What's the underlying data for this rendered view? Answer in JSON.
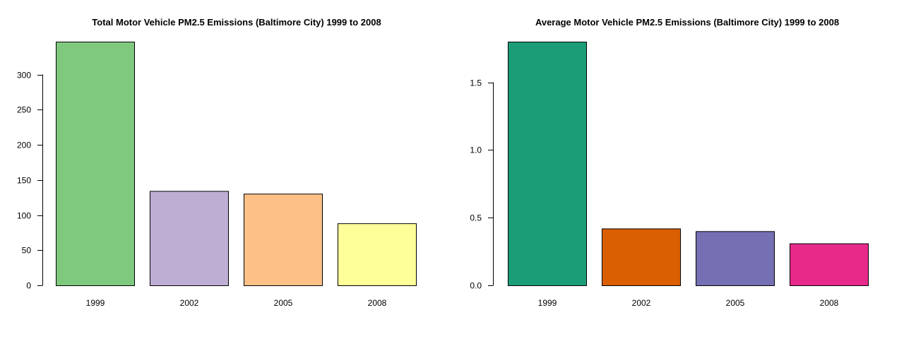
{
  "chart_data": [
    {
      "type": "bar",
      "title": "Total Motor Vehicle PM2.5 Emissions (Baltimore City) 1999 to 2008",
      "xlabel": "",
      "ylabel": "",
      "categories": [
        "1999",
        "2002",
        "2005",
        "2008"
      ],
      "values": [
        346.8,
        134.3,
        130.4,
        88.3
      ],
      "colors": [
        "#7fc97f",
        "#beaed4",
        "#fdc086",
        "#ffff99"
      ],
      "ylim": [
        0,
        346.8
      ],
      "yticks": [
        0,
        50,
        100,
        150,
        200,
        250,
        300
      ],
      "ytick_labels": [
        "0",
        "50",
        "100",
        "150",
        "200",
        "250",
        "300"
      ],
      "grid": false,
      "legend": "none"
    },
    {
      "type": "bar",
      "title": "Average Motor Vehicle PM2.5 Emissions (Baltimore City) 1999 to 2008",
      "xlabel": "",
      "ylabel": "",
      "categories": [
        "1999",
        "2002",
        "2005",
        "2008"
      ],
      "values": [
        1.8,
        0.42,
        0.4,
        0.31
      ],
      "colors": [
        "#1b9e77",
        "#d95f02",
        "#7570b3",
        "#e7298a"
      ],
      "ylim": [
        0,
        1.8
      ],
      "yticks": [
        0,
        0.5,
        1.0,
        1.5
      ],
      "ytick_labels": [
        "0.0",
        "0.5",
        "1.0",
        "1.5"
      ],
      "grid": false,
      "legend": "none"
    }
  ]
}
